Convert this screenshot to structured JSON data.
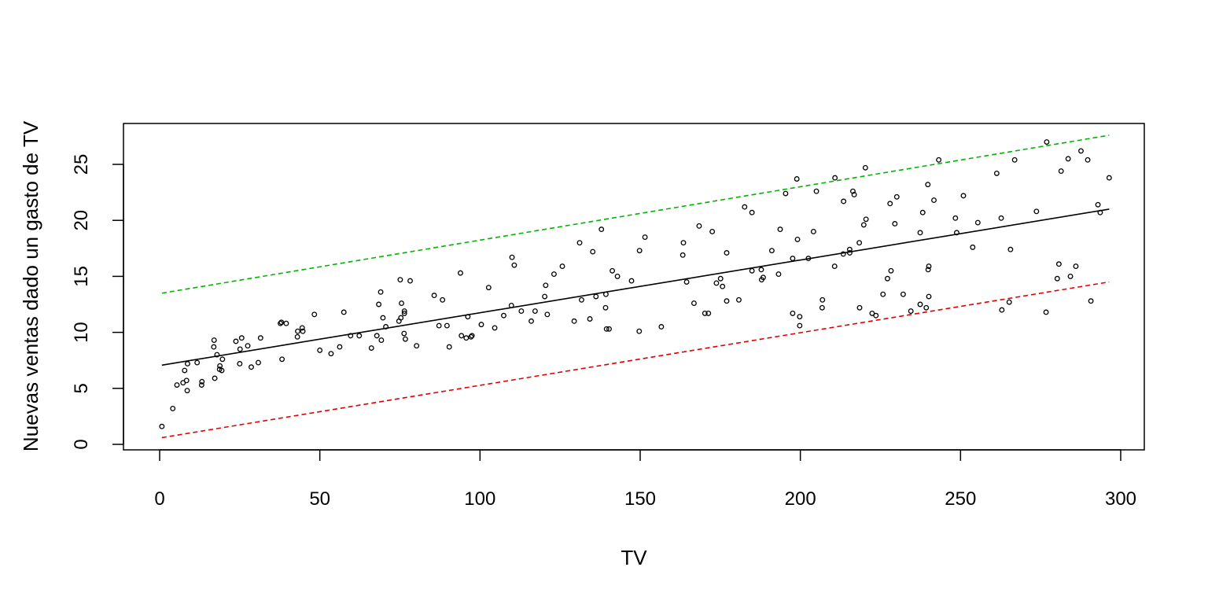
{
  "chart_data": {
    "type": "scatter",
    "title": "",
    "xlabel": "TV",
    "ylabel": "Nuevas ventas dado un gasto de TV",
    "xlim": [
      0,
      300
    ],
    "ylim": [
      0,
      27.5
    ],
    "x_ticks": [
      0,
      50,
      100,
      150,
      200,
      250,
      300
    ],
    "y_ticks": [
      0,
      5,
      10,
      15,
      20,
      25
    ],
    "grid": false,
    "legend": "none",
    "colors": {
      "points": "#000000",
      "fit": "#000000",
      "upper": "#00b400",
      "lower": "#e00000"
    },
    "fit_line": {
      "x": [
        0.7,
        296.4
      ],
      "y": [
        7.07,
        21.0
      ]
    },
    "upper_band": {
      "x": [
        0.7,
        296.4
      ],
      "y": [
        13.5,
        27.6
      ],
      "style": "dashed"
    },
    "lower_band": {
      "x": [
        0.7,
        296.4
      ],
      "y": [
        0.6,
        14.5
      ],
      "style": "dashed"
    },
    "series": [
      {
        "points": [
          [
            0.7,
            1.6
          ],
          [
            4.1,
            3.2
          ],
          [
            5.4,
            5.3
          ],
          [
            7.3,
            5.5
          ],
          [
            7.8,
            6.6
          ],
          [
            8.4,
            5.7
          ],
          [
            8.6,
            4.8
          ],
          [
            8.7,
            7.2
          ],
          [
            11.7,
            7.3
          ],
          [
            13.1,
            5.3
          ],
          [
            13.2,
            5.6
          ],
          [
            16.9,
            8.7
          ],
          [
            17.0,
            9.3
          ],
          [
            17.2,
            5.9
          ],
          [
            17.9,
            8.0
          ],
          [
            18.7,
            6.7
          ],
          [
            18.8,
            7.0
          ],
          [
            19.4,
            6.6
          ],
          [
            19.6,
            7.6
          ],
          [
            23.8,
            9.2
          ],
          [
            25.0,
            7.2
          ],
          [
            25.1,
            8.5
          ],
          [
            25.6,
            9.5
          ],
          [
            27.5,
            8.8
          ],
          [
            28.6,
            6.9
          ],
          [
            30.8,
            7.3
          ],
          [
            31.5,
            9.5
          ],
          [
            37.7,
            10.8
          ],
          [
            38.0,
            10.9
          ],
          [
            38.2,
            7.6
          ],
          [
            39.5,
            10.8
          ],
          [
            43.0,
            9.6
          ],
          [
            43.1,
            10.1
          ],
          [
            44.5,
            10.4
          ],
          [
            44.7,
            10.1
          ],
          [
            48.3,
            11.6
          ],
          [
            50.0,
            8.4
          ],
          [
            53.5,
            8.1
          ],
          [
            56.2,
            8.7
          ],
          [
            57.5,
            11.8
          ],
          [
            59.6,
            9.7
          ],
          [
            62.3,
            9.7
          ],
          [
            66.1,
            8.6
          ],
          [
            67.8,
            9.7
          ],
          [
            68.4,
            12.5
          ],
          [
            69.0,
            13.6
          ],
          [
            69.2,
            9.3
          ],
          [
            69.7,
            11.3
          ],
          [
            70.6,
            10.5
          ],
          [
            74.7,
            11.0
          ],
          [
            75.1,
            14.7
          ],
          [
            75.3,
            11.3
          ],
          [
            75.5,
            12.6
          ],
          [
            76.3,
            9.9
          ],
          [
            76.4,
            11.9
          ],
          [
            76.4,
            11.7
          ],
          [
            76.7,
            9.4
          ],
          [
            78.2,
            14.6
          ],
          [
            80.2,
            8.8
          ],
          [
            85.7,
            13.3
          ],
          [
            87.2,
            10.6
          ],
          [
            88.3,
            12.9
          ],
          [
            89.7,
            10.6
          ],
          [
            90.4,
            8.7
          ],
          [
            93.9,
            15.3
          ],
          [
            94.2,
            9.7
          ],
          [
            95.7,
            9.5
          ],
          [
            96.2,
            11.4
          ],
          [
            97.2,
            9.6
          ],
          [
            97.5,
            9.7
          ],
          [
            100.4,
            10.7
          ],
          [
            102.7,
            14.0
          ],
          [
            104.6,
            10.4
          ],
          [
            107.4,
            11.5
          ],
          [
            109.8,
            12.4
          ],
          [
            110.0,
            16.7
          ],
          [
            110.7,
            16.0
          ],
          [
            112.9,
            11.9
          ],
          [
            116.0,
            11.0
          ],
          [
            117.2,
            11.9
          ],
          [
            120.2,
            13.2
          ],
          [
            120.5,
            14.2
          ],
          [
            121.0,
            11.6
          ],
          [
            123.1,
            15.2
          ],
          [
            125.7,
            15.9
          ],
          [
            129.4,
            11.0
          ],
          [
            131.1,
            18.0
          ],
          [
            131.7,
            12.9
          ],
          [
            134.3,
            11.2
          ],
          [
            135.2,
            17.2
          ],
          [
            136.2,
            13.2
          ],
          [
            137.9,
            19.2
          ],
          [
            139.2,
            12.2
          ],
          [
            139.3,
            13.4
          ],
          [
            139.5,
            10.3
          ],
          [
            140.3,
            10.3
          ],
          [
            141.3,
            15.5
          ],
          [
            142.9,
            15.0
          ],
          [
            147.3,
            14.6
          ],
          [
            149.7,
            10.1
          ],
          [
            149.8,
            17.3
          ],
          [
            151.5,
            18.5
          ],
          [
            156.6,
            10.5
          ],
          [
            163.3,
            16.9
          ],
          [
            163.5,
            18.0
          ],
          [
            164.5,
            14.5
          ],
          [
            166.8,
            12.6
          ],
          [
            168.4,
            19.5
          ],
          [
            170.2,
            11.7
          ],
          [
            171.3,
            11.7
          ],
          [
            172.5,
            19.0
          ],
          [
            173.8,
            14.4
          ],
          [
            175.1,
            14.8
          ],
          [
            175.7,
            14.1
          ],
          [
            177.0,
            12.8
          ],
          [
            177.0,
            17.1
          ],
          [
            180.8,
            12.9
          ],
          [
            182.6,
            21.2
          ],
          [
            184.9,
            20.7
          ],
          [
            184.9,
            15.5
          ],
          [
            187.8,
            15.6
          ],
          [
            187.9,
            14.7
          ],
          [
            188.4,
            14.9
          ],
          [
            191.1,
            17.3
          ],
          [
            193.2,
            15.2
          ],
          [
            193.7,
            19.2
          ],
          [
            195.4,
            22.4
          ],
          [
            197.6,
            11.7
          ],
          [
            197.6,
            16.6
          ],
          [
            198.9,
            23.7
          ],
          [
            199.1,
            18.3
          ],
          [
            199.8,
            11.4
          ],
          [
            199.8,
            10.6
          ],
          [
            202.5,
            16.6
          ],
          [
            204.1,
            19.0
          ],
          [
            205.0,
            22.6
          ],
          [
            206.8,
            12.2
          ],
          [
            206.9,
            12.9
          ],
          [
            210.7,
            15.9
          ],
          [
            210.8,
            23.8
          ],
          [
            213.4,
            17.0
          ],
          [
            213.5,
            21.7
          ],
          [
            215.4,
            17.1
          ],
          [
            215.4,
            17.4
          ],
          [
            216.4,
            22.6
          ],
          [
            216.8,
            22.3
          ],
          [
            218.4,
            18.0
          ],
          [
            218.5,
            12.2
          ],
          [
            219.8,
            19.6
          ],
          [
            220.3,
            24.7
          ],
          [
            220.5,
            20.1
          ],
          [
            222.4,
            11.7
          ],
          [
            223.6,
            11.5
          ],
          [
            225.8,
            13.4
          ],
          [
            227.2,
            14.8
          ],
          [
            228.0,
            21.5
          ],
          [
            228.3,
            15.5
          ],
          [
            229.5,
            19.7
          ],
          [
            230.1,
            22.1
          ],
          [
            232.1,
            13.4
          ],
          [
            234.5,
            11.9
          ],
          [
            237.4,
            12.5
          ],
          [
            237.4,
            18.9
          ],
          [
            238.2,
            20.7
          ],
          [
            239.3,
            12.2
          ],
          [
            239.8,
            23.2
          ],
          [
            239.9,
            15.6
          ],
          [
            240.1,
            13.2
          ],
          [
            240.1,
            15.9
          ],
          [
            241.7,
            21.8
          ],
          [
            243.2,
            25.4
          ],
          [
            248.4,
            20.2
          ],
          [
            248.8,
            18.9
          ],
          [
            250.9,
            22.2
          ],
          [
            253.8,
            17.6
          ],
          [
            255.4,
            19.8
          ],
          [
            261.3,
            24.2
          ],
          [
            262.7,
            20.2
          ],
          [
            262.9,
            12.0
          ],
          [
            265.2,
            12.7
          ],
          [
            265.6,
            17.4
          ],
          [
            266.9,
            25.4
          ],
          [
            273.7,
            20.8
          ],
          [
            276.7,
            11.8
          ],
          [
            276.9,
            27.0
          ],
          [
            280.2,
            14.8
          ],
          [
            280.7,
            16.1
          ],
          [
            281.4,
            24.4
          ],
          [
            283.6,
            25.5
          ],
          [
            284.3,
            15.0
          ],
          [
            286.0,
            15.9
          ],
          [
            287.6,
            26.2
          ],
          [
            289.7,
            25.4
          ],
          [
            290.7,
            12.8
          ],
          [
            292.9,
            21.4
          ],
          [
            293.6,
            20.7
          ],
          [
            296.4,
            23.8
          ]
        ]
      }
    ]
  }
}
